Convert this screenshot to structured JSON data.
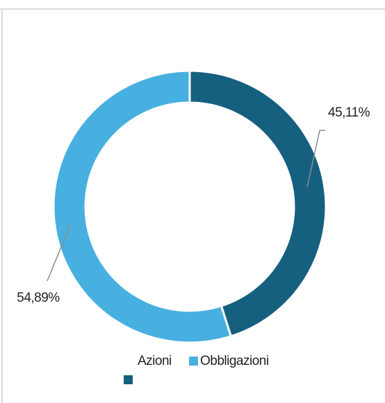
{
  "chart_data": {
    "type": "donut",
    "categories": [
      "Azioni",
      "Obbligazioni"
    ],
    "values": [
      45.11,
      54.89
    ],
    "value_labels": [
      "45,11%",
      "54,89%"
    ],
    "colors": [
      "#16607f",
      "#48b0e0"
    ]
  }
}
